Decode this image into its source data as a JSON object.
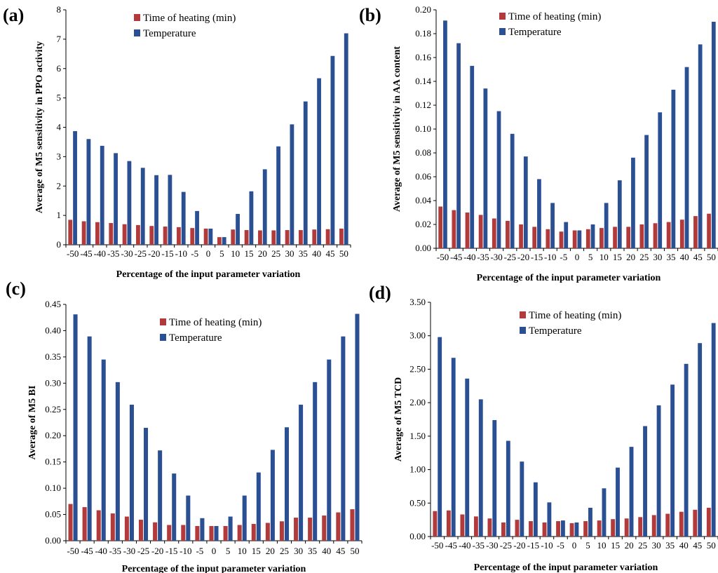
{
  "chart_data": [
    {
      "panel": "(a)",
      "type": "bar",
      "xlabel": "Percentage of the input  parameter  variation",
      "ylabel": "Average of M5 sensitivity in PPO activity",
      "ylim": [
        0,
        8
      ],
      "yticks": [
        "0",
        "1",
        "2",
        "3",
        "4",
        "5",
        "6",
        "7",
        "8"
      ],
      "categories": [
        "-50",
        "-45",
        "-40",
        "-35",
        "-30",
        "-25",
        "-20",
        "-15",
        "-10",
        "-5",
        "0",
        "5",
        "10",
        "15",
        "20",
        "25",
        "30",
        "35",
        "40",
        "45",
        "50"
      ],
      "series": [
        {
          "name": "Time of heating (min)",
          "values": [
            0.85,
            0.8,
            0.77,
            0.74,
            0.7,
            0.67,
            0.64,
            0.62,
            0.6,
            0.57,
            0.55,
            0.26,
            0.52,
            0.5,
            0.49,
            0.49,
            0.5,
            0.5,
            0.52,
            0.53,
            0.55
          ]
        },
        {
          "name": "Temperature",
          "values": [
            3.87,
            3.6,
            3.37,
            3.12,
            2.85,
            2.62,
            2.37,
            2.38,
            1.8,
            1.15,
            0.55,
            0.26,
            1.05,
            1.82,
            2.57,
            3.35,
            4.1,
            4.88,
            5.67,
            6.43,
            7.2
          ]
        }
      ],
      "legend_position": "top-center"
    },
    {
      "panel": "(b)",
      "type": "bar",
      "xlabel": "Percentage of the input  parameter  variation",
      "ylabel": "Average of M5 sensitivity in AA content",
      "ylim": [
        0,
        0.2
      ],
      "yticks": [
        "0.00",
        "0.02",
        "0.04",
        "0.06",
        "0.08",
        "0.10",
        "0.12",
        "0.14",
        "0.16",
        "0.18",
        "0.20"
      ],
      "categories": [
        "-50",
        "-45",
        "-40",
        "-35",
        "-30",
        "-25",
        "-20",
        "-15",
        "-10",
        "-5",
        "0",
        "5",
        "10",
        "15",
        "20",
        "25",
        "30",
        "35",
        "40",
        "45",
        "50"
      ],
      "series": [
        {
          "name": "Time of heating (min)",
          "values": [
            0.035,
            0.032,
            0.03,
            0.028,
            0.025,
            0.023,
            0.02,
            0.018,
            0.016,
            0.014,
            0.015,
            0.016,
            0.017,
            0.018,
            0.018,
            0.02,
            0.021,
            0.022,
            0.024,
            0.027,
            0.029
          ]
        },
        {
          "name": "Temperature",
          "values": [
            0.191,
            0.172,
            0.153,
            0.134,
            0.115,
            0.096,
            0.077,
            0.058,
            0.038,
            0.022,
            0.015,
            0.02,
            0.038,
            0.057,
            0.076,
            0.095,
            0.114,
            0.133,
            0.152,
            0.171,
            0.19
          ]
        }
      ],
      "legend_position": "top-center"
    },
    {
      "panel": "(c)",
      "type": "bar",
      "xlabel": "Percentage of the input  parameter  variation",
      "ylabel": "Average of M5 BI",
      "ylim": [
        0,
        0.45
      ],
      "yticks": [
        "0.00",
        "0.05",
        "0.10",
        "0.15",
        "0.20",
        "0.25",
        "0.30",
        "0.35",
        "0.40",
        "0.45"
      ],
      "categories": [
        "-50",
        "-45",
        "-40",
        "-35",
        "-30",
        "-25",
        "-20",
        "-15",
        "-10",
        "-5",
        "0",
        "5",
        "10",
        "15",
        "20",
        "25",
        "30",
        "35",
        "40",
        "45",
        "50"
      ],
      "series": [
        {
          "name": "Time of heating (min)",
          "values": [
            0.07,
            0.064,
            0.058,
            0.052,
            0.046,
            0.04,
            0.035,
            0.03,
            0.03,
            0.028,
            0.028,
            0.028,
            0.03,
            0.032,
            0.034,
            0.037,
            0.044,
            0.044,
            0.048,
            0.054,
            0.06
          ]
        },
        {
          "name": "Temperature",
          "values": [
            0.431,
            0.389,
            0.345,
            0.302,
            0.259,
            0.215,
            0.172,
            0.128,
            0.086,
            0.043,
            0.028,
            0.046,
            0.086,
            0.13,
            0.173,
            0.216,
            0.259,
            0.302,
            0.345,
            0.389,
            0.432
          ]
        }
      ],
      "legend_position": "top-center"
    },
    {
      "panel": "(d)",
      "type": "bar",
      "xlabel": "Percentage of the input  parameter  variation",
      "ylabel": "Average of M5 TCD",
      "ylim": [
        0,
        3.5
      ],
      "yticks": [
        "0.00",
        "0.50",
        "1.00",
        "1.50",
        "2.00",
        "2.50",
        "3.00",
        "3.50"
      ],
      "categories": [
        "-50",
        "-45",
        "-40",
        "-35",
        "-30",
        "-25",
        "-20",
        "-15",
        "-10",
        "-5",
        "0",
        "5",
        "10",
        "15",
        "20",
        "25",
        "30",
        "35",
        "40",
        "45",
        "50"
      ],
      "series": [
        {
          "name": "Time of heating (min)",
          "values": [
            0.38,
            0.39,
            0.33,
            0.3,
            0.27,
            0.21,
            0.25,
            0.23,
            0.21,
            0.23,
            0.2,
            0.23,
            0.24,
            0.26,
            0.27,
            0.29,
            0.32,
            0.34,
            0.37,
            0.4,
            0.43
          ]
        },
        {
          "name": "Temperature",
          "values": [
            2.98,
            2.67,
            2.36,
            2.05,
            1.74,
            1.43,
            1.12,
            0.81,
            0.51,
            0.24,
            0.21,
            0.43,
            0.72,
            1.03,
            1.34,
            1.65,
            1.96,
            2.27,
            2.58,
            2.89,
            3.19
          ]
        }
      ],
      "legend_position": "top-center"
    }
  ],
  "colors": {
    "time_of_heating": "#b23a3a",
    "temperature": "#2b4f93"
  }
}
